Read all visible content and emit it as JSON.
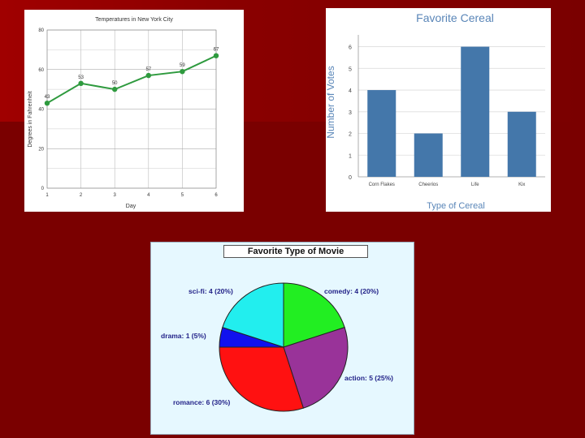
{
  "chart_data": [
    {
      "type": "line",
      "title": "Temperatures in New York City",
      "xlabel": "Day",
      "ylabel": "Degrees in Fahrenheit",
      "x": [
        1,
        2,
        3,
        4,
        5,
        6
      ],
      "values": [
        43,
        53,
        50,
        57,
        59,
        67
      ],
      "xlim": [
        1,
        6
      ],
      "ylim": [
        0,
        80
      ],
      "yticks": [
        0,
        20,
        40,
        60,
        80
      ],
      "grid": true,
      "color": "#2e9a3e"
    },
    {
      "type": "bar",
      "title": "Favorite Cereal",
      "xlabel": "Type of Cereal",
      "ylabel": "Number of Votes",
      "categories": [
        "Corn Flakes",
        "Cheerios",
        "Life",
        "Kix"
      ],
      "values": [
        4,
        2,
        6,
        3
      ],
      "ylim": [
        0,
        6
      ],
      "yticks": [
        0,
        1,
        2,
        3,
        4,
        5,
        6
      ],
      "grid": true,
      "color": "#4477aa",
      "title_color": "#5a86b8"
    },
    {
      "type": "pie",
      "title": "Favorite Type of Movie",
      "slices": [
        {
          "label": "comedy: 4  (20%)",
          "value": 4,
          "color": "#22ee22"
        },
        {
          "label": "action: 5  (25%)",
          "value": 5,
          "color": "#993399"
        },
        {
          "label": "romance: 6  (30%)",
          "value": 6,
          "color": "#ff1111"
        },
        {
          "label": "drama: 1  (5%)",
          "value": 1,
          "color": "#1111ee"
        },
        {
          "label": "sci-fi: 4  (20%)",
          "value": 4,
          "color": "#22eeee"
        }
      ],
      "label_color": "#222288"
    }
  ]
}
